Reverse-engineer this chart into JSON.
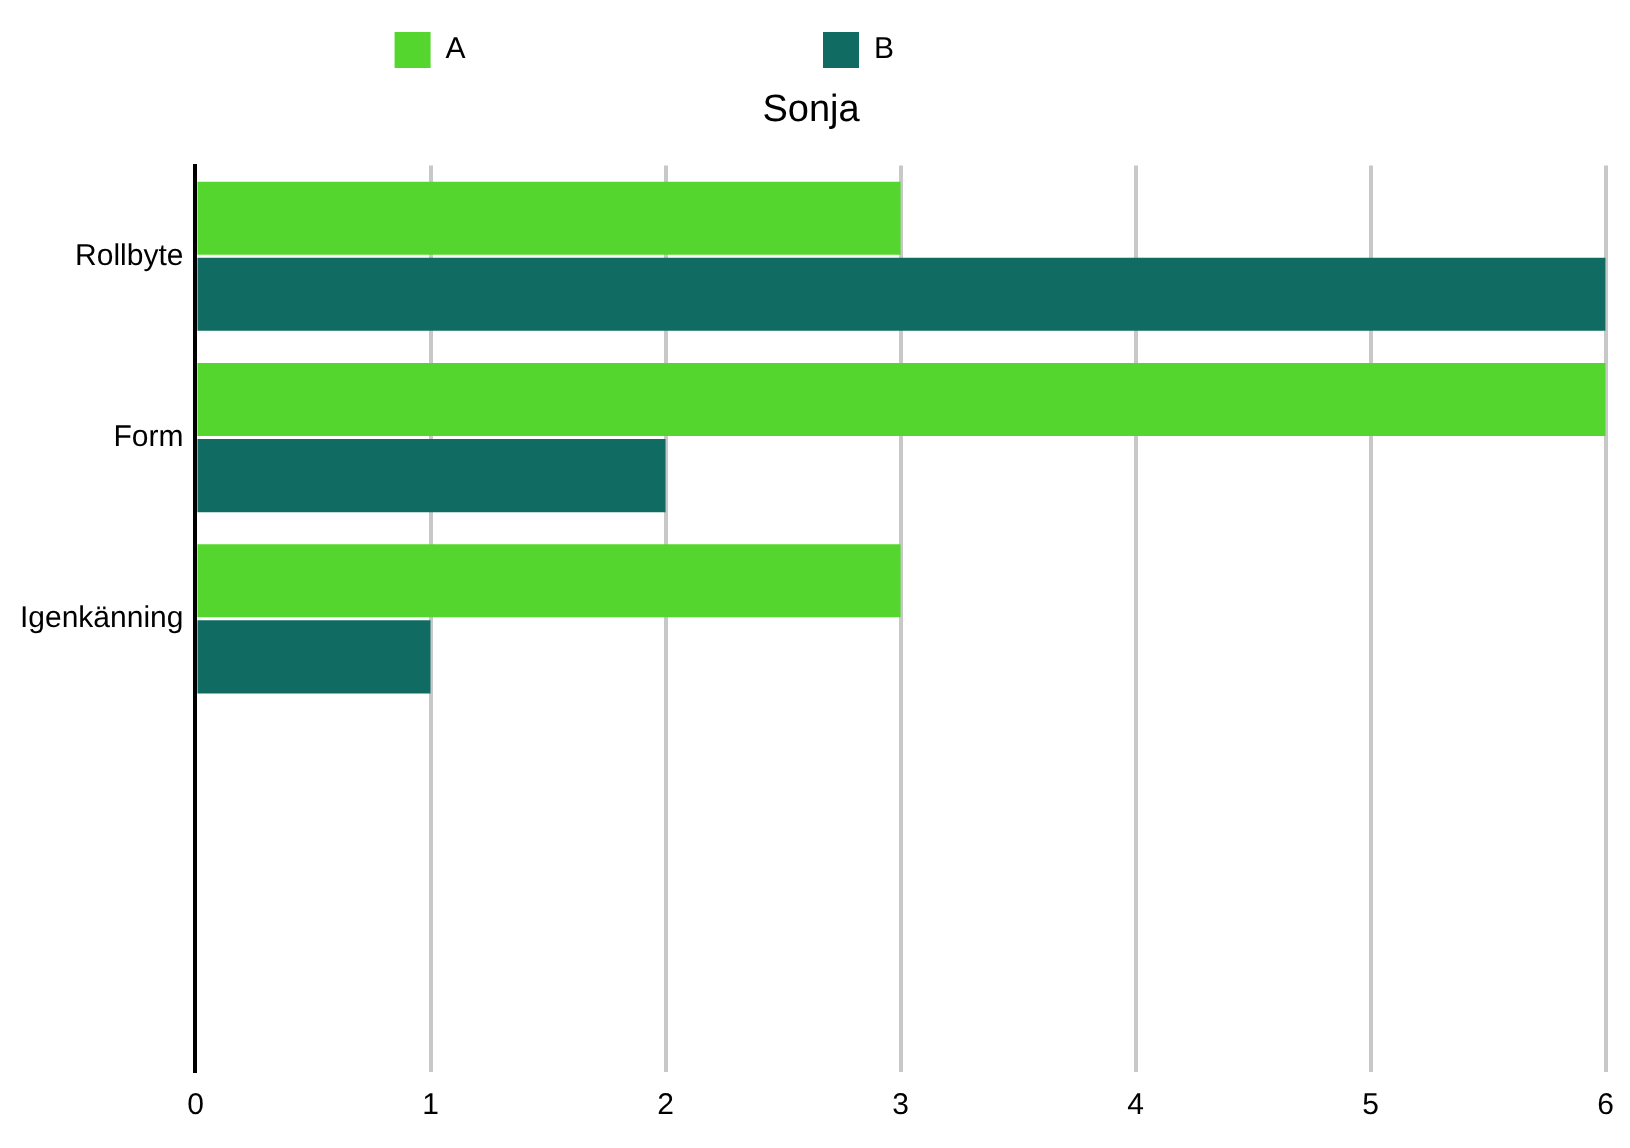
{
  "chart_data": {
    "type": "bar",
    "orientation": "horizontal",
    "title": "Sonja",
    "categories": [
      "Rollbyte",
      "Form",
      "Igenkänning",
      null,
      null
    ],
    "series": [
      {
        "name": "A",
        "color": "#55d62e",
        "values": [
          3,
          6,
          3,
          null,
          null
        ]
      },
      {
        "name": "B",
        "color": "#106b63",
        "values": [
          6,
          2,
          1,
          null,
          null
        ]
      }
    ],
    "xlim": [
      0,
      6
    ],
    "xticks": [
      0,
      1,
      2,
      3,
      4,
      5,
      6
    ],
    "grid": "x",
    "legend": "top"
  }
}
